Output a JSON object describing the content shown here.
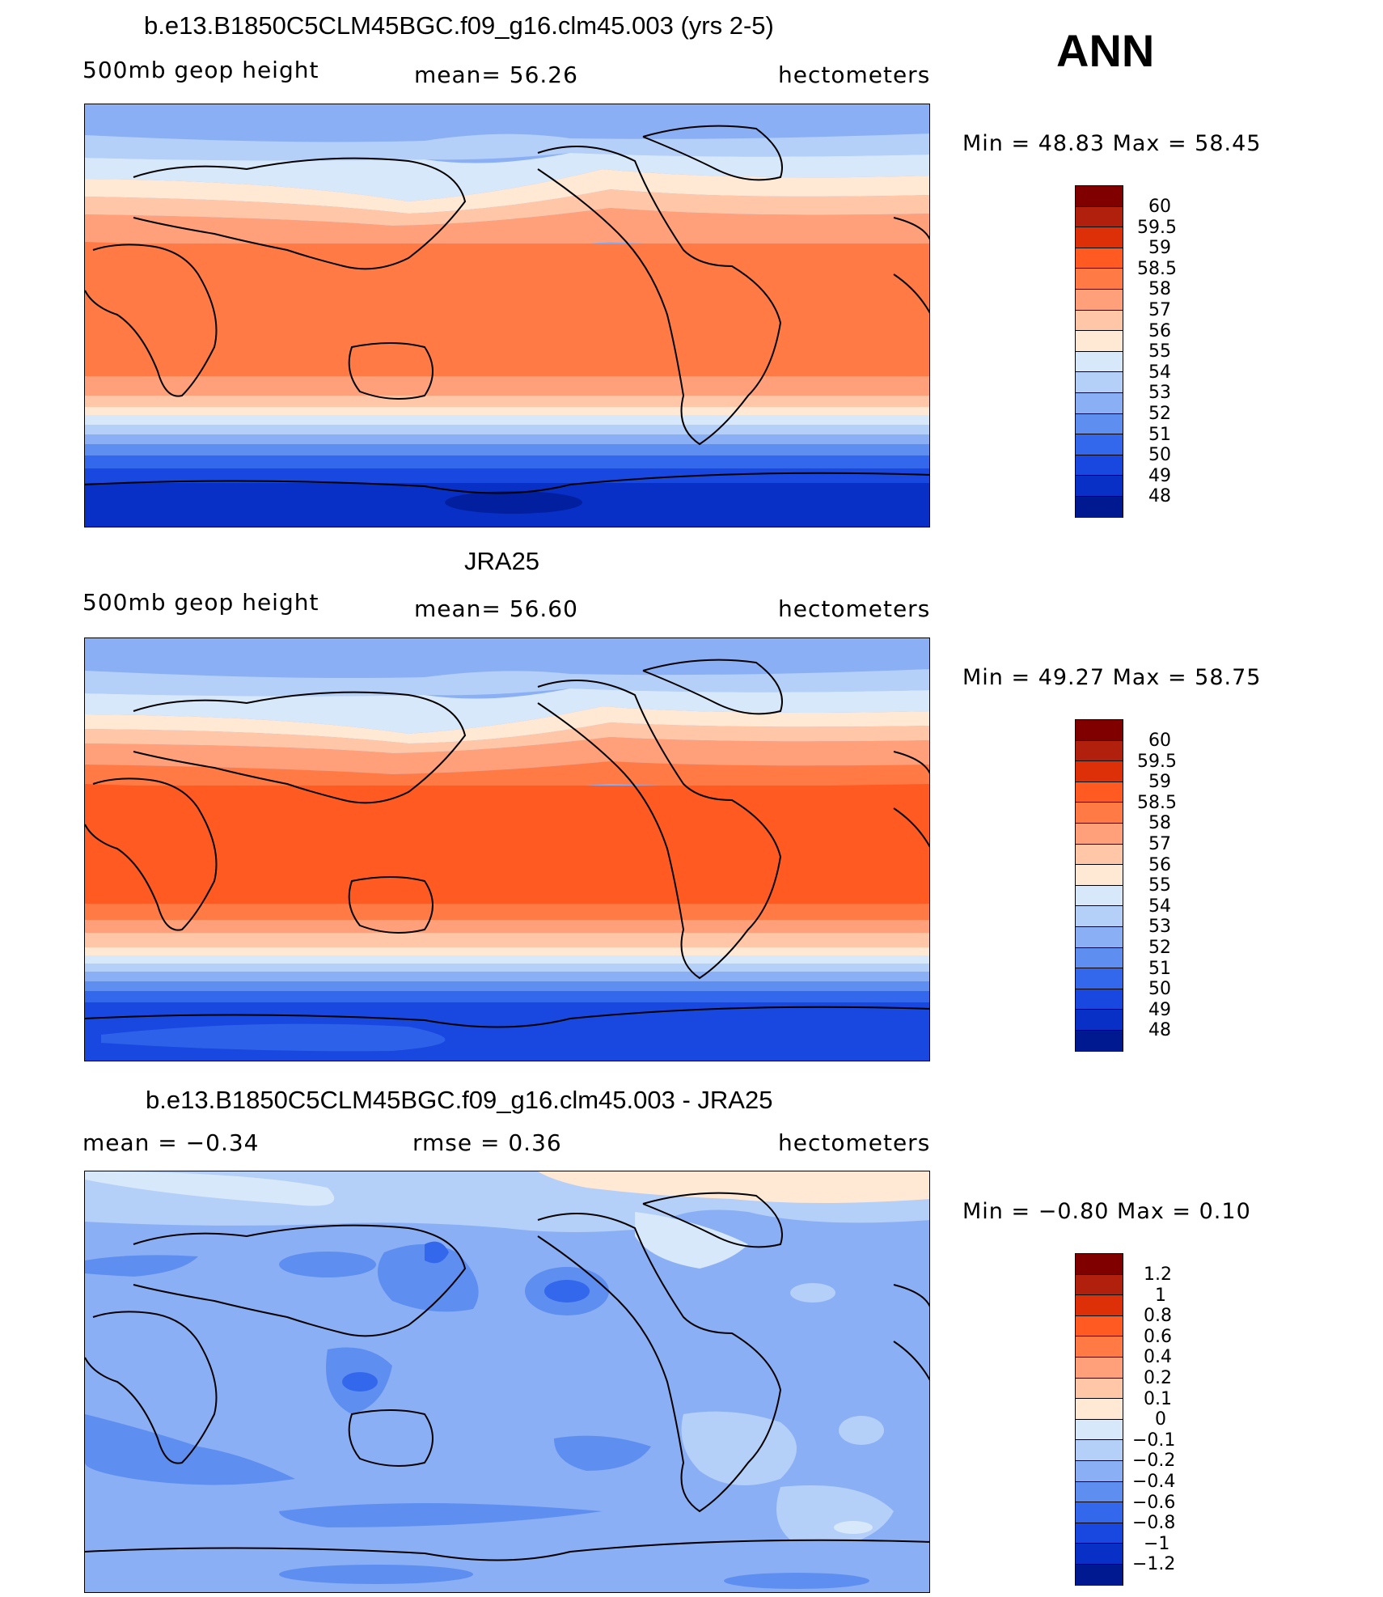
{
  "header": {
    "season": "ANN"
  },
  "panels": [
    {
      "title": "b.e13.B1850C5CLM45BGC.f09_g16.clm45.003 (yrs 2-5)",
      "variable": "500mb geop height",
      "stat_text": "mean=  56.26",
      "units": "hectometers",
      "minmax_text": "Min =   48.83 Max =   58.45",
      "colorbar": {
        "labels": [
          "60",
          "59.5",
          "59",
          "58.5",
          "58",
          "57",
          "56",
          "55",
          "54",
          "53",
          "52",
          "51",
          "50",
          "49",
          "48"
        ],
        "colors": [
          "#800000",
          "#b0200c",
          "#dd3008",
          "#ff5a22",
          "#ff7a45",
          "#ffa07a",
          "#ffc7a8",
          "#ffe8d4",
          "#d8e8fb",
          "#b4cff8",
          "#8aaff5",
          "#5e8ef0",
          "#3468ec",
          "#1848e0",
          "#0830c6",
          "#001890"
        ]
      },
      "map_name": "model-map"
    },
    {
      "title": "JRA25",
      "variable": "500mb geop height",
      "stat_text": "mean=  56.60",
      "units": "hectometers",
      "minmax_text": "Min =   49.27 Max =   58.75",
      "colorbar": {
        "labels": [
          "60",
          "59.5",
          "59",
          "58.5",
          "58",
          "57",
          "56",
          "55",
          "54",
          "53",
          "52",
          "51",
          "50",
          "49",
          "48"
        ],
        "colors": [
          "#800000",
          "#b0200c",
          "#dd3008",
          "#ff5a22",
          "#ff7a45",
          "#ffa07a",
          "#ffc7a8",
          "#ffe8d4",
          "#d8e8fb",
          "#b4cff8",
          "#8aaff5",
          "#5e8ef0",
          "#3468ec",
          "#1848e0",
          "#0830c6",
          "#001890"
        ]
      },
      "map_name": "obs-map"
    },
    {
      "title": "b.e13.B1850C5CLM45BGC.f09_g16.clm45.003 - JRA25",
      "variable": "mean =   −0.34",
      "stat_text": "rmse =    0.36",
      "units": "hectometers",
      "minmax_text": "Min =   −0.80 Max =     0.10",
      "colorbar": {
        "labels": [
          "1.2",
          "1",
          "0.8",
          "0.6",
          "0.4",
          "0.2",
          "0.1",
          "0",
          "−0.1",
          "−0.2",
          "−0.4",
          "−0.6",
          "−0.8",
          "−1",
          "−1.2"
        ],
        "colors": [
          "#800000",
          "#b0200c",
          "#dd3008",
          "#ff5a22",
          "#ff7a45",
          "#ffa07a",
          "#ffc7a8",
          "#ffe8d4",
          "#d8e8fb",
          "#b4cff8",
          "#8aaff5",
          "#5e8ef0",
          "#3468ec",
          "#1848e0",
          "#0830c6",
          "#001890"
        ]
      },
      "map_name": "diff-map"
    }
  ]
}
